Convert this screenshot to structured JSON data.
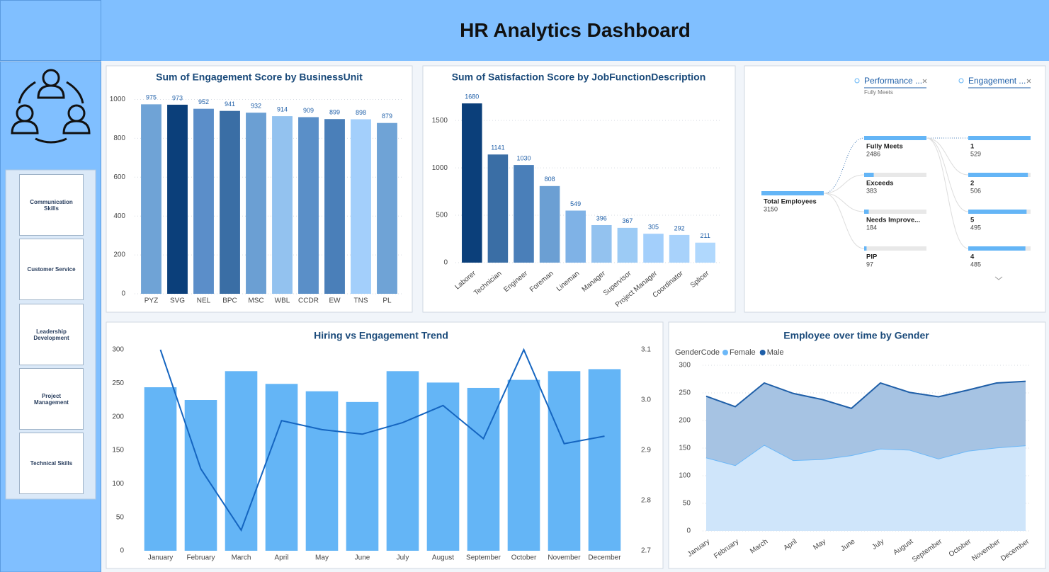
{
  "header": {
    "title": "HR Analytics Dashboard"
  },
  "sidebar": {
    "buttons": [
      "Communication Skills",
      "Customer Service",
      "Leadership Development",
      "Project Management",
      "Technical Skills"
    ]
  },
  "chart_data": [
    {
      "type": "bar",
      "title": "Sum of Engagement Score by BusinessUnit",
      "categories": [
        "PYZ",
        "SVG",
        "NEL",
        "BPC",
        "MSC",
        "WBL",
        "CCDR",
        "EW",
        "TNS",
        "PL"
      ],
      "values": [
        975,
        973,
        952,
        941,
        932,
        914,
        909,
        899,
        898,
        879
      ],
      "colors": [
        "#6fa3d6",
        "#0b3f7a",
        "#5b8ec9",
        "#3a6ea5",
        "#6b9fd3",
        "#93c2ef",
        "#5a8fc8",
        "#4a7fb9",
        "#a3cffb",
        "#6fa3d6"
      ],
      "ylim": [
        0,
        1020
      ],
      "yticks": [
        0,
        200,
        400,
        600,
        800,
        1000
      ],
      "grid": true
    },
    {
      "type": "bar",
      "title": "Sum of Satisfaction Score by JobFunctionDescription",
      "categories": [
        "Laborer",
        "Technician",
        "Engineer",
        "Foreman",
        "Lineman",
        "Manager",
        "Supervisor",
        "Project Manager",
        "Coordinator",
        "Splicer"
      ],
      "values": [
        1680,
        1141,
        1030,
        808,
        549,
        396,
        367,
        305,
        292,
        211
      ],
      "colors": [
        "#0b3f7a",
        "#3a6ea5",
        "#4a7fb9",
        "#6b9fd3",
        "#7fb2e6",
        "#93c2ef",
        "#9ccbf5",
        "#a3cffb",
        "#a8d2fb",
        "#b0d8fd"
      ],
      "ylim": [
        0,
        1800
      ],
      "yticks": [
        0,
        500,
        1000,
        1500
      ],
      "grid": true
    },
    {
      "type": "combo",
      "title": "Hiring vs Engagement Trend",
      "categories": [
        "January",
        "February",
        "March",
        "April",
        "May",
        "June",
        "July",
        "August",
        "September",
        "October",
        "November",
        "December"
      ],
      "series": [
        {
          "type": "bar",
          "color": "#64b5f6",
          "values": [
            244,
            225,
            268,
            249,
            238,
            222,
            268,
            251,
            243,
            255,
            268,
            271
          ]
        },
        {
          "type": "line",
          "axis": "y2",
          "color": "#1565c0",
          "values": [
            3.1,
            2.863,
            2.741,
            2.959,
            2.941,
            2.932,
            2.955,
            2.989,
            2.923,
            3.1,
            2.913,
            2.928
          ]
        }
      ],
      "ylim": [
        0,
        300
      ],
      "yticks": [
        0,
        50,
        100,
        150,
        200,
        250,
        300
      ],
      "y2lim": [
        2.7,
        3.1
      ],
      "y2ticks": [
        2.7,
        2.8,
        2.9,
        {
          "value": 3,
          "label": "3.0"
        },
        3.1
      ],
      "grid": false
    },
    {
      "type": "area",
      "stacked": true,
      "title": "Employee over time by Gender",
      "legend_title": "GenderCode",
      "categories": [
        "January",
        "February",
        "March",
        "April",
        "May",
        "June",
        "July",
        "August",
        "September",
        "October",
        "November",
        "December"
      ],
      "series": [
        {
          "name": "Female",
          "color": "#6cb8f8",
          "values": [
            133,
            119,
            156,
            128,
            130,
            137,
            149,
            147,
            131,
            145,
            151,
            155
          ]
        },
        {
          "name": "Male",
          "color": "#1f5fa8",
          "values": [
            111,
            106,
            112,
            121,
            108,
            85,
            119,
            104,
            112,
            110,
            117,
            116
          ]
        }
      ],
      "ylim": [
        0,
        300
      ],
      "yticks": [
        0,
        50,
        100,
        150,
        200,
        250,
        300
      ],
      "grid": true
    }
  ],
  "decomposition_tree": {
    "columns": [
      {
        "header": "Performance ...",
        "filter": "Fully Meets"
      },
      {
        "header": "Engagement ..."
      }
    ],
    "root": {
      "label": "Total Employees",
      "value": 3150
    },
    "levels": [
      [
        {
          "label": "Fully Meets",
          "value": 2486
        },
        {
          "label": "Exceeds",
          "value": 383
        },
        {
          "label": "Needs Improve...",
          "value": 184
        },
        {
          "label": "PIP",
          "value": 97
        }
      ],
      [
        {
          "label": "1",
          "value": 529
        },
        {
          "label": "2",
          "value": 506
        },
        {
          "label": "5",
          "value": 495
        },
        {
          "label": "4",
          "value": 485
        }
      ]
    ]
  }
}
